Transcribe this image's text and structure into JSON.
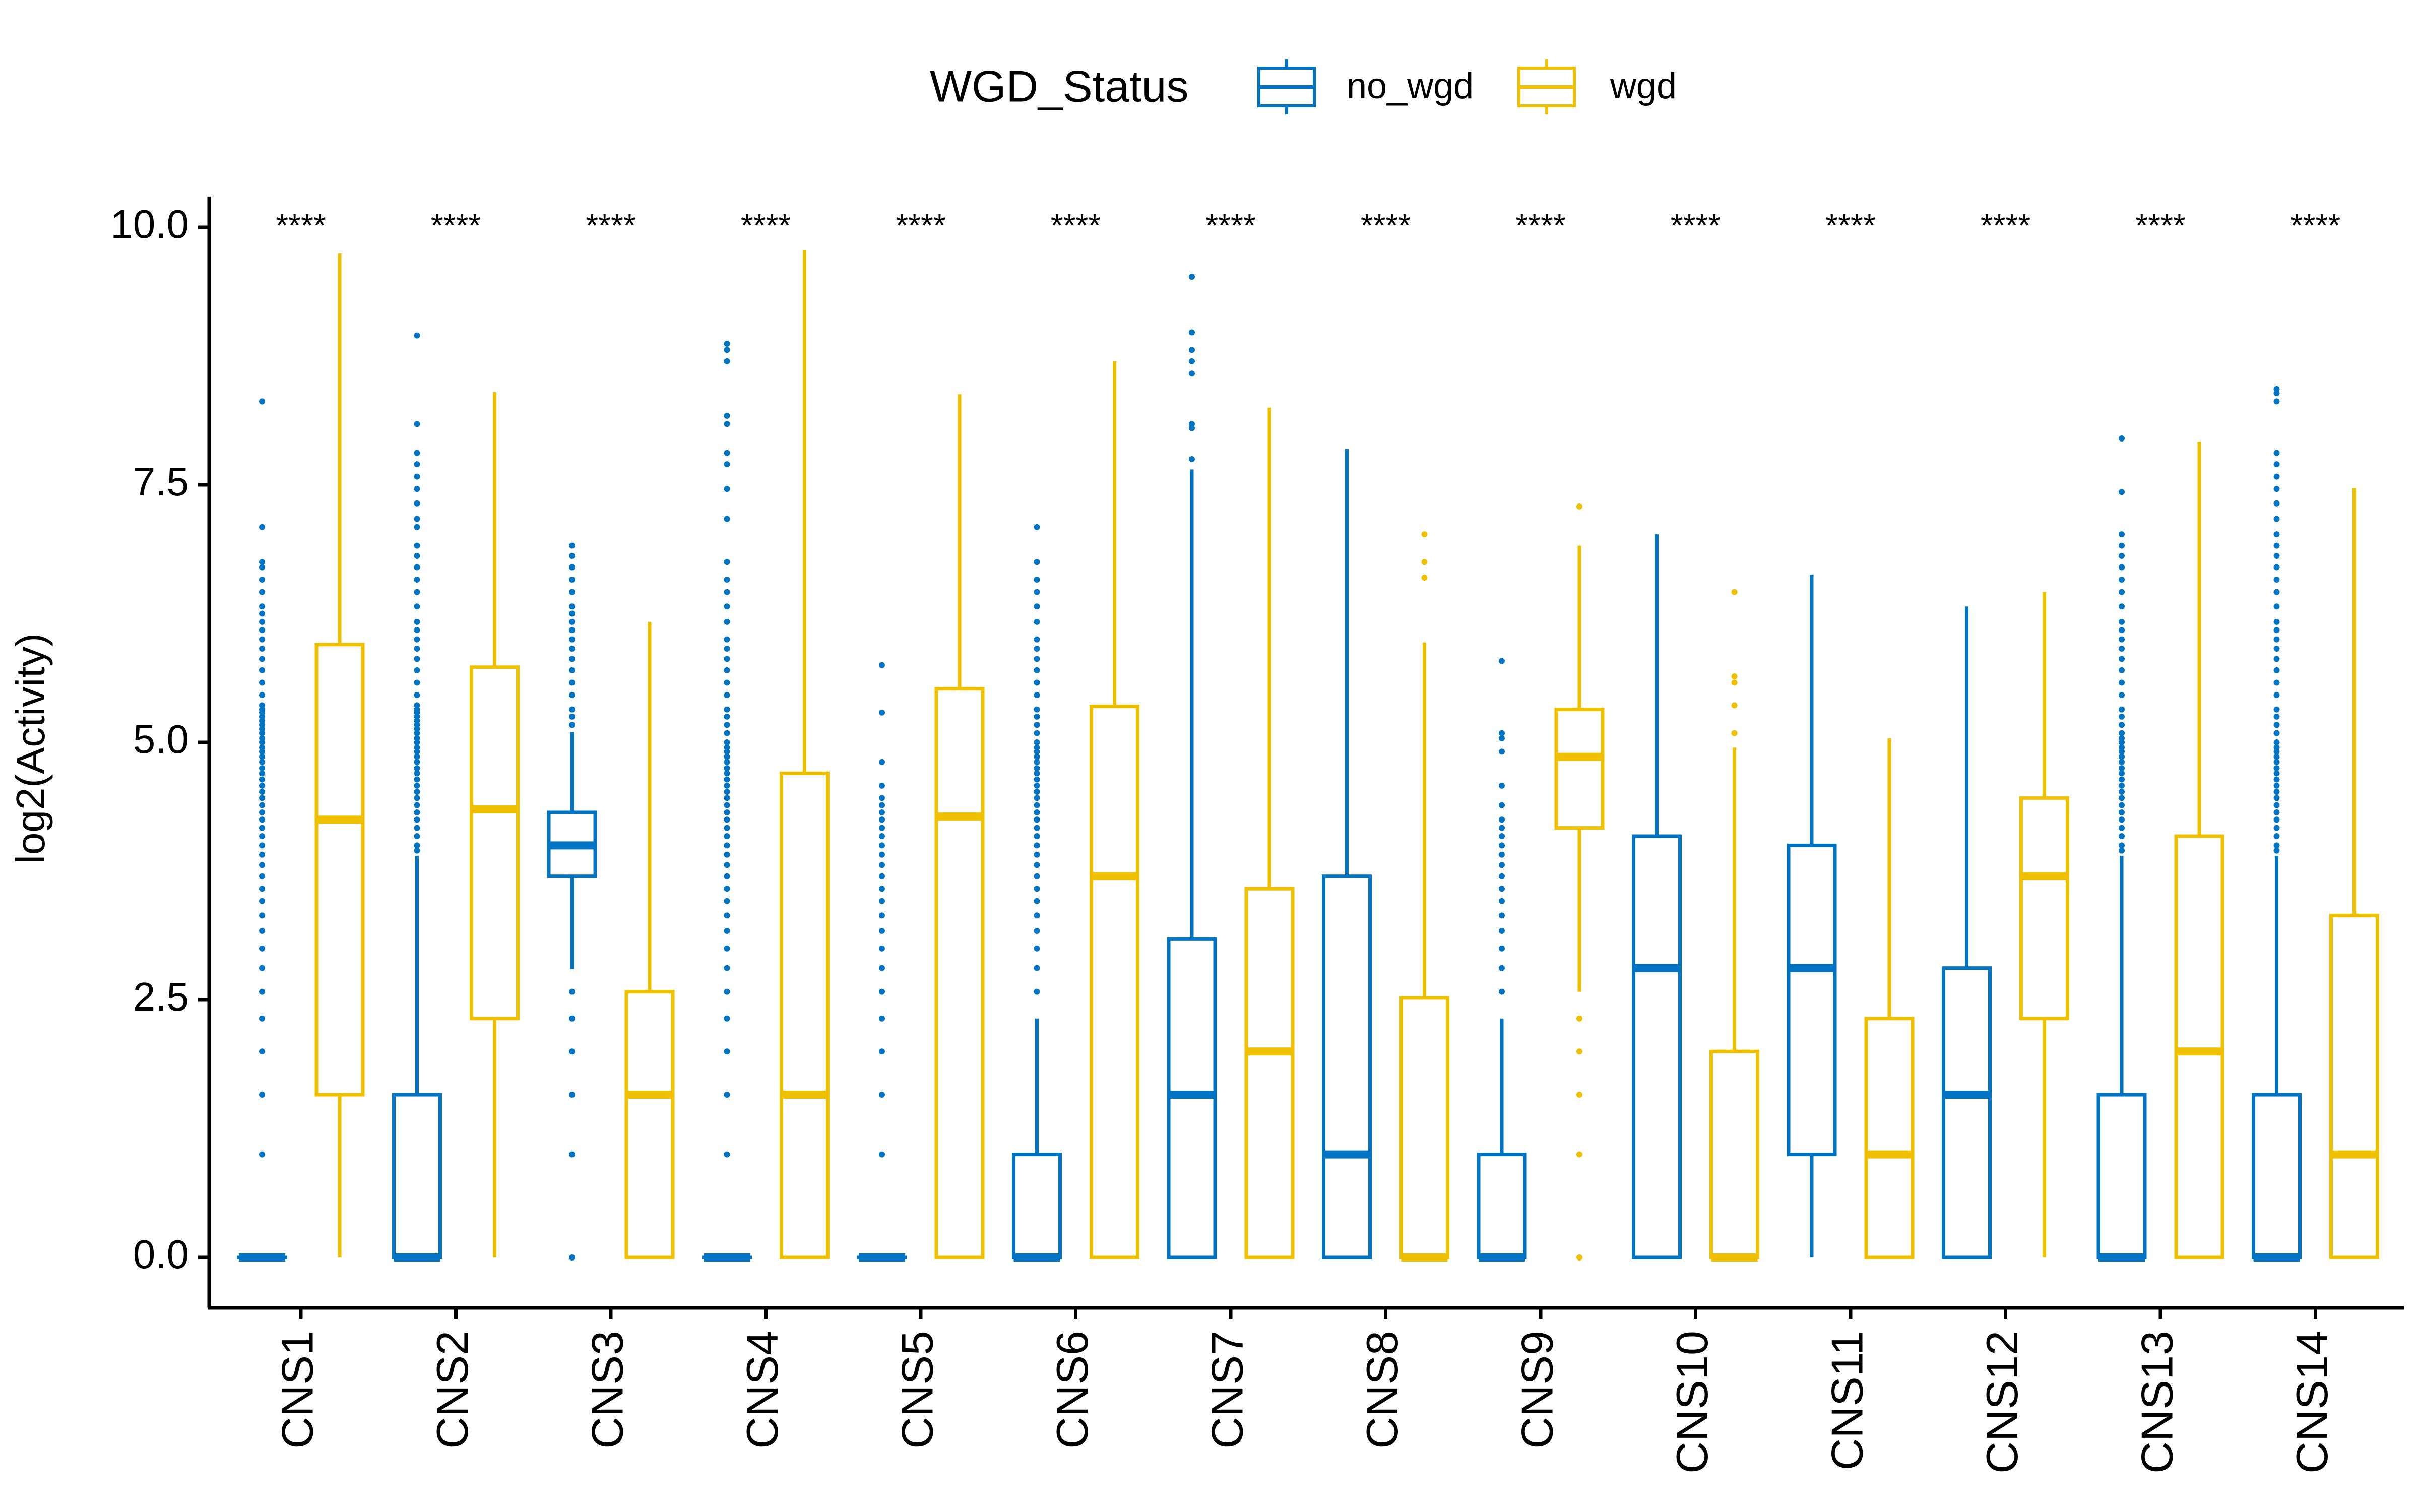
{
  "chart_data": {
    "type": "boxplot",
    "title": "",
    "xlabel": "",
    "ylabel": "log2(Activity)",
    "ylim": [
      -0.5,
      10.25
    ],
    "yticks": [
      0,
      2.5,
      5,
      7.5,
      10
    ],
    "ytick_labels": [
      "0.0",
      "2.5",
      "5.0",
      "7.5",
      "10.0"
    ],
    "grid": false,
    "legend": {
      "title": "WGD_Status",
      "position": "top",
      "entries": [
        {
          "name": "no_wgd",
          "color": "#0073C2"
        },
        {
          "name": "wgd",
          "color": "#EFC000"
        }
      ]
    },
    "significance_label": "****",
    "categories": [
      "CNS1",
      "CNS2",
      "CNS3",
      "CNS4",
      "CNS5",
      "CNS6",
      "CNS7",
      "CNS8",
      "CNS9",
      "CNS10",
      "CNS11",
      "CNS12",
      "CNS13",
      "CNS14"
    ],
    "series": [
      {
        "name": "no_wgd",
        "color": "#0073C2",
        "boxes": [
          {
            "min": 0,
            "q1": 0,
            "median": 0,
            "q3": 0,
            "max": 0,
            "outliers": [
              1,
              1.58,
              2,
              2.32,
              2.58,
              2.81,
              3,
              3.17,
              3.32,
              3.46,
              3.58,
              3.7,
              3.81,
              3.91,
              4,
              4.09,
              4.17,
              4.25,
              4.32,
              4.39,
              4.46,
              4.52,
              4.58,
              4.64,
              4.7,
              4.75,
              4.81,
              4.86,
              4.91,
              4.95,
              5,
              5.04,
              5.09,
              5.13,
              5.17,
              5.21,
              5.25,
              5.29,
              5.32,
              5.36,
              5.46,
              5.58,
              5.7,
              5.81,
              5.91,
              6,
              6.09,
              6.17,
              6.25,
              6.32,
              6.46,
              6.58,
              6.7,
              6.75,
              7.09,
              8.31
            ]
          },
          {
            "min": 0,
            "q1": 0,
            "median": 0,
            "q3": 1.58,
            "max": 3.9,
            "outliers": [
              3.95,
              4,
              4.09,
              4.17,
              4.25,
              4.32,
              4.39,
              4.46,
              4.52,
              4.58,
              4.64,
              4.7,
              4.75,
              4.81,
              4.86,
              4.91,
              4.95,
              5,
              5.04,
              5.09,
              5.13,
              5.17,
              5.21,
              5.25,
              5.29,
              5.32,
              5.36,
              5.46,
              5.58,
              5.7,
              5.81,
              5.91,
              6,
              6.09,
              6.17,
              6.32,
              6.46,
              6.58,
              6.7,
              6.81,
              6.91,
              7.09,
              7.17,
              7.32,
              7.46,
              7.58,
              7.7,
              7.81,
              8.09,
              8.95
            ]
          },
          {
            "min": 2.8,
            "q1": 3.7,
            "median": 4.0,
            "q3": 4.32,
            "max": 5.1,
            "outliers": [
              0,
              1,
              1.58,
              2,
              2.32,
              2.58,
              5.17,
              5.25,
              5.32,
              5.46,
              5.58,
              5.7,
              5.81,
              5.91,
              6,
              6.09,
              6.17,
              6.25,
              6.32,
              6.46,
              6.58,
              6.7,
              6.81,
              6.91
            ]
          },
          {
            "min": 0,
            "q1": 0,
            "median": 0,
            "q3": 0,
            "max": 0,
            "outliers": [
              1,
              1.58,
              2,
              2.32,
              2.58,
              2.81,
              3,
              3.17,
              3.32,
              3.46,
              3.58,
              3.7,
              3.81,
              3.91,
              4,
              4.09,
              4.17,
              4.25,
              4.32,
              4.39,
              4.46,
              4.52,
              4.58,
              4.64,
              4.7,
              4.75,
              4.81,
              4.86,
              4.91,
              4.95,
              5,
              5.09,
              5.17,
              5.25,
              5.32,
              5.46,
              5.58,
              5.7,
              5.81,
              5.91,
              6,
              6.17,
              6.32,
              6.46,
              6.58,
              6.75,
              7.17,
              7.46,
              7.7,
              7.81,
              8.09,
              8.17,
              8.7,
              8.81,
              8.87
            ]
          },
          {
            "min": 0,
            "q1": 0,
            "median": 0,
            "q3": 0,
            "max": 0,
            "outliers": [
              1,
              1.58,
              2,
              2.32,
              2.58,
              2.81,
              3,
              3.17,
              3.32,
              3.46,
              3.58,
              3.7,
              3.81,
              3.91,
              4,
              4.09,
              4.17,
              4.25,
              4.32,
              4.39,
              4.46,
              4.58,
              4.81,
              5.29,
              5.75
            ]
          },
          {
            "min": 0,
            "q1": 0,
            "median": 0,
            "q3": 1.0,
            "max": 2.32,
            "outliers": [
              2.58,
              2.81,
              3,
              3.17,
              3.32,
              3.46,
              3.58,
              3.7,
              3.81,
              3.91,
              4,
              4.09,
              4.17,
              4.25,
              4.32,
              4.39,
              4.46,
              4.52,
              4.58,
              4.64,
              4.7,
              4.75,
              4.81,
              4.86,
              4.91,
              4.95,
              5,
              5.09,
              5.17,
              5.25,
              5.32,
              5.46,
              5.58,
              5.7,
              5.81,
              5.91,
              6,
              6.17,
              6.32,
              6.46,
              6.58,
              6.75,
              7.09
            ]
          },
          {
            "min": 0,
            "q1": 0,
            "median": 1.58,
            "q3": 3.09,
            "max": 7.65,
            "outliers": [
              7.75,
              8.05,
              8.09,
              8.58,
              8.7,
              8.81,
              8.98,
              9.52
            ]
          },
          {
            "min": 0,
            "q1": 0,
            "median": 1.0,
            "q3": 3.7,
            "max": 7.85,
            "outliers": []
          },
          {
            "min": 0,
            "q1": 0,
            "median": 0,
            "q3": 1.0,
            "max": 2.32,
            "outliers": [
              2.58,
              2.81,
              3,
              3.17,
              3.32,
              3.46,
              3.58,
              3.7,
              3.81,
              3.91,
              4,
              4.09,
              4.17,
              4.25,
              4.39,
              4.58,
              4.91,
              5.04,
              5.09,
              5.79
            ]
          },
          {
            "min": 0,
            "q1": 0,
            "median": 2.81,
            "q3": 4.09,
            "max": 7.02,
            "outliers": []
          },
          {
            "min": 0,
            "q1": 1.0,
            "median": 2.81,
            "q3": 4.0,
            "max": 6.63,
            "outliers": []
          },
          {
            "min": 0,
            "q1": 0,
            "median": 1.58,
            "q3": 2.81,
            "max": 6.32,
            "outliers": []
          },
          {
            "min": 0,
            "q1": 0,
            "median": 0,
            "q3": 1.58,
            "max": 3.9,
            "outliers": [
              3.95,
              4,
              4.09,
              4.17,
              4.25,
              4.32,
              4.39,
              4.46,
              4.52,
              4.58,
              4.64,
              4.7,
              4.75,
              4.81,
              4.86,
              4.91,
              4.95,
              5,
              5.04,
              5.09,
              5.17,
              5.25,
              5.32,
              5.46,
              5.58,
              5.7,
              5.81,
              5.91,
              6,
              6.09,
              6.17,
              6.32,
              6.46,
              6.58,
              6.7,
              6.81,
              6.91,
              7.02,
              7.43,
              7.95
            ]
          },
          {
            "min": 0,
            "q1": 0,
            "median": 0,
            "q3": 1.58,
            "max": 3.9,
            "outliers": [
              3.95,
              4,
              4.09,
              4.17,
              4.25,
              4.32,
              4.39,
              4.46,
              4.52,
              4.58,
              4.64,
              4.7,
              4.75,
              4.81,
              4.86,
              4.91,
              4.95,
              5,
              5.09,
              5.17,
              5.25,
              5.32,
              5.46,
              5.58,
              5.7,
              5.81,
              5.91,
              6,
              6.09,
              6.17,
              6.32,
              6.46,
              6.58,
              6.7,
              6.81,
              6.91,
              7.02,
              7.17,
              7.32,
              7.46,
              7.58,
              7.7,
              7.81,
              8.31,
              8.39,
              8.43
            ]
          }
        ]
      },
      {
        "name": "wgd",
        "color": "#EFC000",
        "boxes": [
          {
            "min": 0,
            "q1": 1.58,
            "median": 4.25,
            "q3": 5.95,
            "max": 9.75,
            "outliers": []
          },
          {
            "min": 0,
            "q1": 2.32,
            "median": 4.35,
            "q3": 5.73,
            "max": 8.4,
            "outliers": []
          },
          {
            "min": 0,
            "q1": 0,
            "median": 1.58,
            "q3": 2.58,
            "max": 6.17,
            "outliers": []
          },
          {
            "min": 0,
            "q1": 0,
            "median": 1.58,
            "q3": 4.7,
            "max": 9.78,
            "outliers": []
          },
          {
            "min": 0,
            "q1": 0,
            "median": 4.28,
            "q3": 5.52,
            "max": 8.38,
            "outliers": []
          },
          {
            "min": 0,
            "q1": 0,
            "median": 3.7,
            "q3": 5.35,
            "max": 8.7,
            "outliers": []
          },
          {
            "min": 0,
            "q1": 0,
            "median": 2.0,
            "q3": 3.58,
            "max": 8.25,
            "outliers": []
          },
          {
            "min": 0,
            "q1": 0,
            "median": 0,
            "q3": 2.52,
            "max": 5.97,
            "outliers": [
              6.6,
              6.75,
              7.02
            ]
          },
          {
            "min": 2.58,
            "q1": 4.17,
            "median": 4.86,
            "q3": 5.32,
            "max": 6.91,
            "outliers": [
              0,
              1,
              1.58,
              2,
              2.32,
              7.29
            ]
          },
          {
            "min": 0,
            "q1": 0,
            "median": 0,
            "q3": 2.0,
            "max": 4.95,
            "outliers": [
              5.09,
              5.36,
              5.58,
              5.64,
              6.46
            ]
          },
          {
            "min": 0,
            "q1": 0,
            "median": 1.0,
            "q3": 2.32,
            "max": 5.04,
            "outliers": []
          },
          {
            "min": 0,
            "q1": 2.32,
            "median": 3.7,
            "q3": 4.46,
            "max": 6.46,
            "outliers": []
          },
          {
            "min": 0,
            "q1": 0,
            "median": 2.0,
            "q3": 4.09,
            "max": 7.92,
            "outliers": []
          },
          {
            "min": 0,
            "q1": 0,
            "median": 1.0,
            "q3": 3.32,
            "max": 7.47,
            "outliers": []
          }
        ]
      }
    ]
  }
}
